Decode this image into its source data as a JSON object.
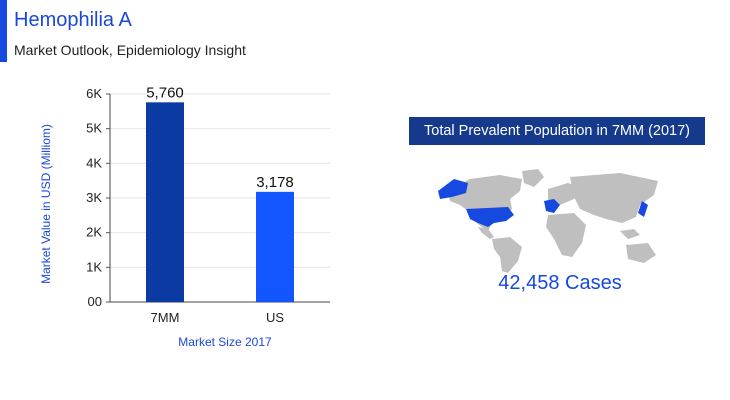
{
  "header": {
    "title": "Hemophilia A",
    "subtitle": "Market Outlook, Epidemiology Insight"
  },
  "chart_data": {
    "type": "bar",
    "categories": [
      "7MM",
      "US"
    ],
    "values": [
      5760,
      3178
    ],
    "value_labels": [
      "5,760",
      "3,178"
    ],
    "bar_colors": [
      "#0b3aa3",
      "#1356ff"
    ],
    "title": "",
    "xlabel": "Market Size 2017",
    "ylabel": "Market Value in USD (Milliom)",
    "ylim": [
      0,
      6000
    ],
    "yticks": [
      0,
      1000,
      2000,
      3000,
      4000,
      5000,
      6000
    ],
    "ytick_labels": [
      "00",
      "1K",
      "2K",
      "3K",
      "4K",
      "5K",
      "6K"
    ],
    "grid": true,
    "legend": "none"
  },
  "map_panel": {
    "title": "Total Prevalent Population in 7MM (2017)",
    "cases": "42,458 Cases",
    "highlight_color": "#1549e0",
    "base_color": "#bfbfbf"
  }
}
